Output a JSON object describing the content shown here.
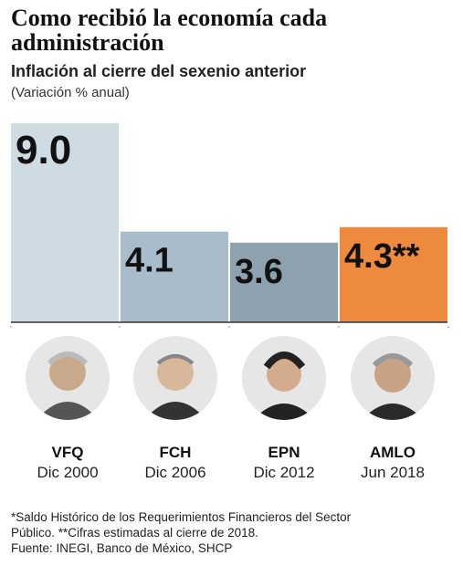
{
  "title": "Como recibió la economía cada administración",
  "subtitle": "Inflación al cierre del sexenio anterior",
  "unit_note": "(Variación % anual)",
  "colors": {
    "bar_default": "#cfdbe3",
    "bar_mid": "#a9bccb",
    "bar_dark": "#8ea1af",
    "bar_highlight": "#ee8a3e",
    "baseline": "#333333"
  },
  "chart_data": {
    "type": "bar",
    "title": "Inflación al cierre del sexenio anterior",
    "ylabel": "(Variación % anual)",
    "categories": [
      "VFQ",
      "FCH",
      "EPN",
      "AMLO"
    ],
    "values": [
      9.0,
      4.1,
      3.6,
      4.3
    ],
    "labels": [
      "9.0",
      "4.1",
      "3.6",
      "4.3**"
    ],
    "bar_colors": [
      "#cfdbe3",
      "#a9bccb",
      "#8ea1af",
      "#ee8a3e"
    ],
    "ylim": [
      0,
      9.0
    ],
    "grid": false
  },
  "people": [
    {
      "name": "VFQ",
      "date": "Dic 2000",
      "icon": "portrait-icon"
    },
    {
      "name": "FCH",
      "date": "Dic 2006",
      "icon": "portrait-icon"
    },
    {
      "name": "EPN",
      "date": "Dic 2012",
      "icon": "portrait-icon"
    },
    {
      "name": "AMLO",
      "date": "Jun  2018",
      "icon": "portrait-icon"
    }
  ],
  "footnotes": [
    "*Saldo Histórico de los Requerimientos Financieros del Sector",
    "Público. **Cifras estimadas al cierre de 2018.",
    "Fuente: INEGI, Banco de México, SHCP"
  ]
}
